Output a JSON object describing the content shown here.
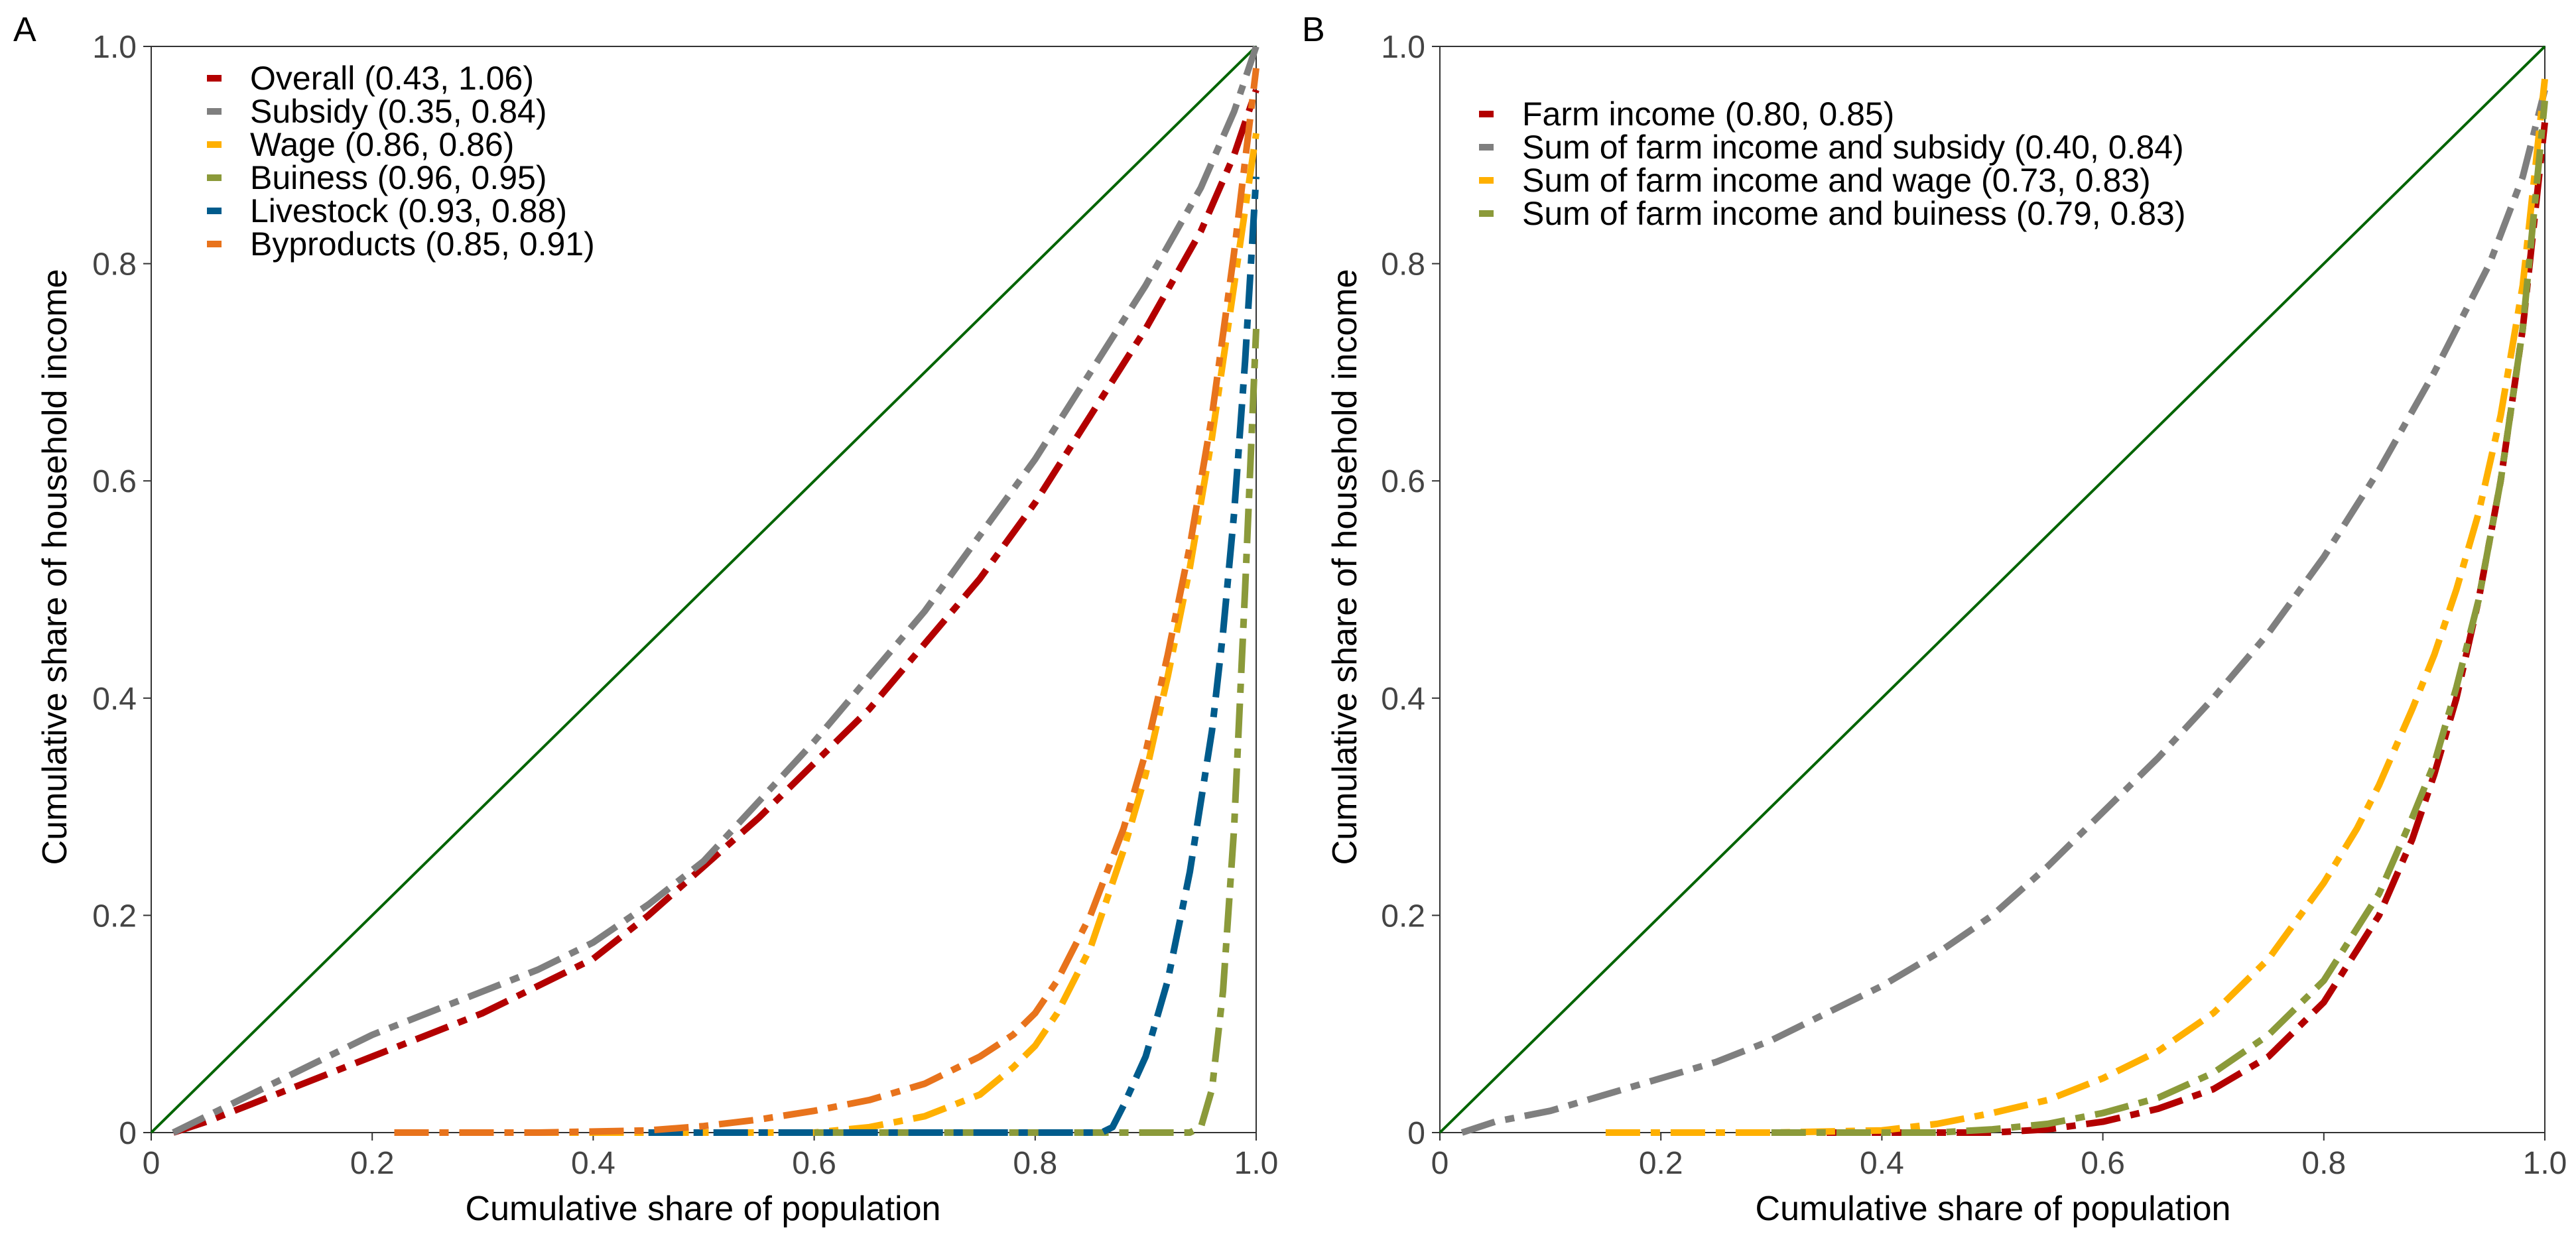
{
  "chart_data": [
    {
      "panel": "A",
      "type": "line",
      "xlabel": "Cumulative share of population",
      "ylabel": "Cumulative share of household income",
      "xlim": [
        0,
        1
      ],
      "ylim": [
        0,
        1
      ],
      "x_ticks": [
        "0",
        "0.2",
        "0.4",
        "0.6",
        "0.8",
        "1.0"
      ],
      "y_ticks": [
        "0",
        "0.2",
        "0.4",
        "0.6",
        "0.8",
        "1.0"
      ],
      "grid": false,
      "legend_position": "top-left",
      "reference_line": {
        "x": [
          0,
          1
        ],
        "y": [
          0,
          1
        ],
        "color": "#006400"
      },
      "series": [
        {
          "name": "Overall (0.43, 1.06)",
          "color": "#b30000",
          "x": [
            0.02,
            0.05,
            0.1,
            0.15,
            0.2,
            0.25,
            0.3,
            0.35,
            0.4,
            0.45,
            0.5,
            0.55,
            0.6,
            0.65,
            0.7,
            0.75,
            0.8,
            0.85,
            0.9,
            0.95,
            0.98,
            1.0
          ],
          "y": [
            0.0,
            0.01,
            0.03,
            0.05,
            0.07,
            0.09,
            0.11,
            0.135,
            0.16,
            0.2,
            0.245,
            0.29,
            0.34,
            0.39,
            0.45,
            0.51,
            0.58,
            0.66,
            0.74,
            0.83,
            0.9,
            0.96
          ]
        },
        {
          "name": "Subsidy (0.35, 0.84)",
          "color": "#7f7f7f",
          "x": [
            0.02,
            0.05,
            0.1,
            0.15,
            0.2,
            0.25,
            0.3,
            0.35,
            0.4,
            0.45,
            0.5,
            0.55,
            0.6,
            0.65,
            0.7,
            0.75,
            0.8,
            0.85,
            0.9,
            0.95,
            0.98,
            1.0
          ],
          "y": [
            0.0,
            0.015,
            0.04,
            0.065,
            0.09,
            0.11,
            0.13,
            0.15,
            0.175,
            0.21,
            0.25,
            0.305,
            0.36,
            0.42,
            0.48,
            0.55,
            0.62,
            0.7,
            0.78,
            0.87,
            0.94,
            1.0
          ]
        },
        {
          "name": "Wage (0.86, 0.86)",
          "color": "#ffb000",
          "x": [
            0.22,
            0.4,
            0.5,
            0.6,
            0.65,
            0.7,
            0.75,
            0.78,
            0.8,
            0.82,
            0.85,
            0.88,
            0.9,
            0.92,
            0.94,
            0.96,
            0.98,
            1.0
          ],
          "y": [
            0.0,
            0.0,
            0.0,
            0.0,
            0.005,
            0.015,
            0.035,
            0.06,
            0.08,
            0.11,
            0.17,
            0.26,
            0.33,
            0.42,
            0.52,
            0.64,
            0.78,
            0.92
          ]
        },
        {
          "name": "Buiness (0.96, 0.95)",
          "color": "#8b9a3a",
          "x": [
            0.6,
            0.8,
            0.9,
            0.94,
            0.95,
            0.96,
            0.97,
            0.98,
            0.99,
            1.0
          ],
          "y": [
            0.0,
            0.0,
            0.0,
            0.0,
            0.005,
            0.04,
            0.13,
            0.28,
            0.5,
            0.74
          ]
        },
        {
          "name": "Livestock (0.93, 0.88)",
          "color": "#005b8c",
          "x": [
            0.45,
            0.6,
            0.7,
            0.8,
            0.86,
            0.87,
            0.88,
            0.9,
            0.92,
            0.94,
            0.96,
            0.97,
            0.98,
            0.99,
            1.0
          ],
          "y": [
            0.0,
            0.0,
            0.0,
            0.0,
            0.0,
            0.005,
            0.025,
            0.07,
            0.14,
            0.24,
            0.37,
            0.46,
            0.57,
            0.71,
            0.88
          ]
        },
        {
          "name": "Byproducts (0.85, 0.91)",
          "color": "#e8731c",
          "x": [
            0.22,
            0.35,
            0.45,
            0.5,
            0.55,
            0.6,
            0.65,
            0.7,
            0.75,
            0.78,
            0.8,
            0.82,
            0.85,
            0.88,
            0.9,
            0.92,
            0.94,
            0.96,
            0.98,
            1.0
          ],
          "y": [
            0.0,
            0.0,
            0.002,
            0.006,
            0.012,
            0.02,
            0.03,
            0.045,
            0.07,
            0.09,
            0.11,
            0.14,
            0.2,
            0.28,
            0.35,
            0.44,
            0.54,
            0.66,
            0.81,
            0.98
          ]
        }
      ]
    },
    {
      "panel": "B",
      "type": "line",
      "xlabel": "Cumulative share of population",
      "ylabel": "Cumulative share of household income",
      "xlim": [
        0,
        1
      ],
      "ylim": [
        0,
        1
      ],
      "x_ticks": [
        "0",
        "0.2",
        "0.4",
        "0.6",
        "0.8",
        "1.0"
      ],
      "y_ticks": [
        "0",
        "0.2",
        "0.4",
        "0.6",
        "0.8",
        "1.0"
      ],
      "grid": false,
      "legend_position": "top-left",
      "reference_line": {
        "x": [
          0,
          1
        ],
        "y": [
          0,
          1
        ],
        "color": "#006400"
      },
      "series": [
        {
          "name": "Farm income (0.80, 0.85)",
          "color": "#b30000",
          "x": [
            0.35,
            0.45,
            0.5,
            0.55,
            0.6,
            0.65,
            0.7,
            0.75,
            0.8,
            0.85,
            0.88,
            0.9,
            0.92,
            0.94,
            0.96,
            0.98,
            1.0
          ],
          "y": [
            0.0,
            0.0,
            0.0,
            0.003,
            0.01,
            0.022,
            0.04,
            0.07,
            0.12,
            0.2,
            0.27,
            0.33,
            0.4,
            0.49,
            0.6,
            0.74,
            0.93
          ]
        },
        {
          "name": "Sum of farm income and subsidy (0.40, 0.84)",
          "color": "#7f7f7f",
          "x": [
            0.02,
            0.05,
            0.1,
            0.15,
            0.2,
            0.25,
            0.3,
            0.35,
            0.4,
            0.45,
            0.5,
            0.55,
            0.6,
            0.65,
            0.7,
            0.75,
            0.8,
            0.85,
            0.9,
            0.95,
            0.98,
            1.0
          ],
          "y": [
            0.0,
            0.01,
            0.02,
            0.035,
            0.05,
            0.065,
            0.085,
            0.11,
            0.135,
            0.165,
            0.2,
            0.245,
            0.295,
            0.345,
            0.4,
            0.46,
            0.53,
            0.61,
            0.7,
            0.8,
            0.88,
            0.96
          ]
        },
        {
          "name": "Sum of farm income and wage (0.73, 0.83)",
          "color": "#ffb000",
          "x": [
            0.15,
            0.3,
            0.4,
            0.45,
            0.5,
            0.55,
            0.6,
            0.65,
            0.7,
            0.75,
            0.8,
            0.83,
            0.85,
            0.88,
            0.9,
            0.92,
            0.94,
            0.96,
            0.98,
            1.0
          ],
          "y": [
            0.0,
            0.0,
            0.002,
            0.008,
            0.018,
            0.03,
            0.05,
            0.075,
            0.11,
            0.16,
            0.23,
            0.28,
            0.32,
            0.39,
            0.44,
            0.5,
            0.57,
            0.66,
            0.78,
            0.97
          ]
        },
        {
          "name": "Sum of farm income and buiness (0.79, 0.83)",
          "color": "#8b9a3a",
          "x": [
            0.3,
            0.45,
            0.5,
            0.55,
            0.6,
            0.65,
            0.7,
            0.75,
            0.8,
            0.85,
            0.88,
            0.9,
            0.92,
            0.94,
            0.96,
            0.98,
            1.0
          ],
          "y": [
            0.0,
            0.0,
            0.003,
            0.008,
            0.018,
            0.032,
            0.055,
            0.09,
            0.14,
            0.22,
            0.29,
            0.34,
            0.41,
            0.49,
            0.6,
            0.74,
            0.95
          ]
        }
      ]
    }
  ]
}
